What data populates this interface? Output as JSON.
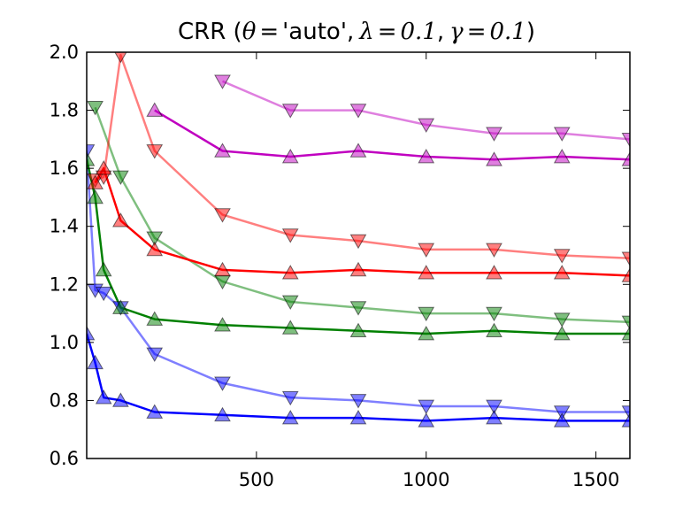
{
  "chart_data": {
    "type": "line",
    "title": "CRR (θ = 'auto', λ = 0.1, γ = 0.1)",
    "title_parts": {
      "prefix": "CRR (",
      "theta": "θ",
      "eq1": "=",
      "theta_val": "'auto'",
      "sep1": ",",
      "lambda": "λ",
      "eq2": "=",
      "lambda_val": "0.1",
      "sep2": ",",
      "gamma": "γ",
      "eq3": "=",
      "gamma_val": "0.1",
      "suffix": ")"
    },
    "xlabel": "",
    "ylabel": "",
    "xlim": [
      0,
      1600
    ],
    "ylim": [
      0.6,
      2.0
    ],
    "xticks": [
      500,
      1000,
      1500
    ],
    "xtick_labels": [
      "500",
      "1000",
      "1500"
    ],
    "yticks": [
      0.6,
      0.8,
      1.0,
      1.2,
      1.4,
      1.6,
      1.8,
      2.0
    ],
    "ytick_labels": [
      "0.6",
      "0.8",
      "1.0",
      "1.2",
      "1.4",
      "1.6",
      "1.8",
      "2.0"
    ],
    "grid": false,
    "series": [
      {
        "color": "#0000ff",
        "alpha": 0.5,
        "marker": "triangle-down",
        "x": [
          0,
          25,
          50,
          100,
          200,
          400,
          600,
          800,
          1000,
          1200,
          1400,
          1600
        ],
        "y": [
          1.66,
          1.18,
          1.17,
          1.12,
          0.96,
          0.86,
          0.81,
          0.8,
          0.78,
          0.78,
          0.76,
          0.76
        ]
      },
      {
        "color": "#0000ff",
        "alpha": 1.0,
        "marker": "triangle-up",
        "x": [
          0,
          25,
          50,
          100,
          200,
          400,
          600,
          800,
          1000,
          1200,
          1400,
          1600
        ],
        "y": [
          1.03,
          0.93,
          0.81,
          0.8,
          0.76,
          0.75,
          0.74,
          0.74,
          0.73,
          0.74,
          0.73,
          0.73
        ]
      },
      {
        "color": "#008000",
        "alpha": 0.5,
        "marker": "triangle-down",
        "x": [
          25,
          100,
          200,
          400,
          600,
          800,
          1000,
          1200,
          1400,
          1600
        ],
        "y": [
          1.81,
          1.57,
          1.36,
          1.21,
          1.14,
          1.12,
          1.1,
          1.1,
          1.08,
          1.07
        ]
      },
      {
        "color": "#008000",
        "alpha": 1.0,
        "marker": "triangle-up",
        "x": [
          0,
          25,
          50,
          100,
          200,
          400,
          600,
          800,
          1000,
          1200,
          1400,
          1600
        ],
        "y": [
          1.63,
          1.5,
          1.25,
          1.12,
          1.08,
          1.06,
          1.05,
          1.04,
          1.03,
          1.04,
          1.03,
          1.03
        ]
      },
      {
        "color": "#ff0000",
        "alpha": 0.5,
        "marker": "triangle-down",
        "x": [
          25,
          50,
          100,
          200,
          400,
          600,
          800,
          1000,
          1200,
          1400,
          1600
        ],
        "y": [
          1.56,
          1.57,
          1.99,
          1.66,
          1.44,
          1.37,
          1.35,
          1.32,
          1.32,
          1.3,
          1.29
        ]
      },
      {
        "color": "#ff0000",
        "alpha": 1.0,
        "marker": "triangle-up",
        "x": [
          25,
          50,
          100,
          200,
          400,
          600,
          800,
          1000,
          1200,
          1400,
          1600
        ],
        "y": [
          1.55,
          1.6,
          1.42,
          1.32,
          1.25,
          1.24,
          1.25,
          1.24,
          1.24,
          1.24,
          1.23
        ]
      },
      {
        "color": "#c000c0",
        "alpha": 0.5,
        "marker": "triangle-down",
        "x": [
          400,
          600,
          800,
          1000,
          1200,
          1400,
          1600
        ],
        "y": [
          1.9,
          1.8,
          1.8,
          1.75,
          1.72,
          1.72,
          1.7
        ]
      },
      {
        "color": "#c000c0",
        "alpha": 1.0,
        "marker": "triangle-up",
        "x": [
          200,
          400,
          600,
          800,
          1000,
          1200,
          1400,
          1600
        ],
        "y": [
          1.8,
          1.66,
          1.64,
          1.66,
          1.64,
          1.63,
          1.64,
          1.63
        ]
      }
    ]
  }
}
